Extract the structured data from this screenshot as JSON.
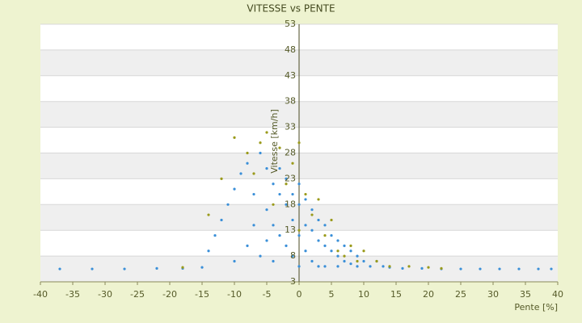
{
  "chart_data": {
    "type": "scatter",
    "title": "VITESSE vs PENTE",
    "x_label": "Pente [%]",
    "y_label": "Vitesse [km/h]",
    "xlim": [
      -40,
      40
    ],
    "xticks": [
      -40,
      -35,
      -30,
      -25,
      -20,
      -15,
      -10,
      -5,
      0,
      5,
      10,
      15,
      20,
      25,
      30,
      35,
      40
    ],
    "ylim": [
      3,
      53
    ],
    "yticks": [
      3,
      8,
      13,
      18,
      23,
      28,
      33,
      38,
      43,
      48,
      53
    ],
    "grid": true,
    "series": [
      {
        "color": "#3a8fd8",
        "x": [
          -37,
          -32,
          -27,
          -22,
          -18,
          -15,
          -14,
          -13,
          -12,
          -11,
          -10,
          -10,
          -9,
          -8,
          -8,
          -7,
          -7,
          -6,
          -6,
          -5,
          -5,
          -5,
          -4,
          -4,
          -4,
          -3,
          -3,
          -3,
          -2,
          -2,
          -2,
          -1,
          -1,
          -1,
          0,
          0,
          0,
          0,
          1,
          1,
          1,
          2,
          2,
          2,
          3,
          3,
          3,
          4,
          4,
          4,
          5,
          5,
          6,
          6,
          6,
          7,
          7,
          8,
          8,
          9,
          9,
          10,
          11,
          12,
          13,
          14,
          16,
          19,
          22,
          25,
          28,
          31,
          34,
          37,
          39
        ],
        "values": [
          5.5,
          5.5,
          5.5,
          5.6,
          5.6,
          5.8,
          9,
          12,
          15,
          18,
          21,
          7,
          24,
          26,
          10,
          20,
          14,
          28,
          8,
          25,
          17,
          11,
          22,
          14,
          7,
          20,
          12,
          25,
          18,
          10,
          23,
          15,
          20,
          8,
          12,
          18,
          22,
          6,
          14,
          19,
          9,
          13,
          17,
          7,
          11,
          15,
          6,
          10,
          14,
          6,
          9,
          12,
          8,
          11,
          6,
          7,
          10,
          6.5,
          9,
          6,
          8,
          7,
          6,
          7,
          6,
          5.8,
          5.6,
          5.6,
          5.5,
          5.5,
          5.5,
          5.5,
          5.5,
          5.5,
          5.5
        ]
      },
      {
        "color": "#9a9a1a",
        "x": [
          -18,
          -14,
          -12,
          -10,
          -8,
          -7,
          -6,
          -5,
          -4,
          -3,
          -2,
          -1,
          0,
          0,
          1,
          2,
          3,
          4,
          5,
          6,
          7,
          8,
          9,
          10,
          12,
          14,
          17,
          20,
          22
        ],
        "values": [
          5.8,
          16,
          23,
          31,
          28,
          24,
          30,
          32,
          18,
          29,
          22,
          26,
          30,
          13,
          20,
          16,
          19,
          12,
          15,
          9,
          8,
          10,
          7,
          9,
          7,
          6,
          6,
          5.8,
          5.6
        ]
      }
    ]
  }
}
